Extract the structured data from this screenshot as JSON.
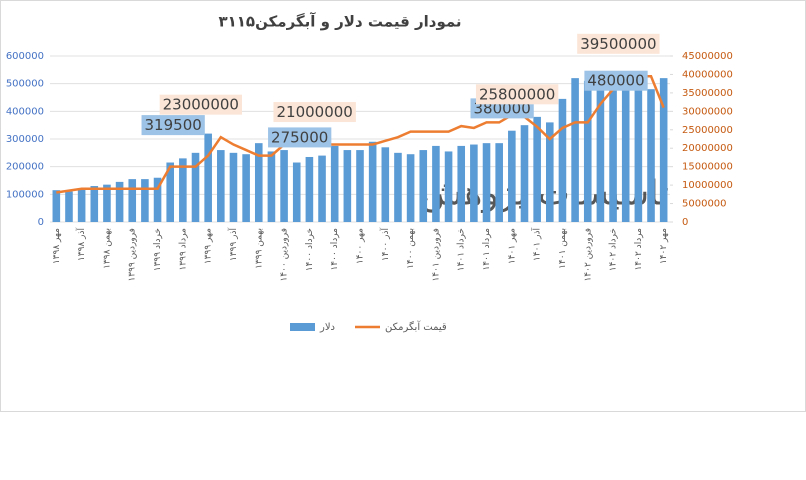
{
  "chart_data": {
    "type": "bar-line",
    "title": "نمودار قیمت دلار و آبگرمکن۳۱۱۵",
    "watermark": "تاسیسات پژوهش",
    "categories": [
      "مهر ۱۳۹۸",
      null,
      "آذر ۱۳۹۸",
      null,
      "بهمن ۱۳۹۸",
      null,
      "فروردین ۱۳۹۹",
      null,
      "خرداد ۱۳۹۹",
      null,
      "مرداد ۱۳۹۹",
      null,
      "مهر ۱۳۹۹",
      null,
      "آذر ۱۳۹۹",
      null,
      "بهمن ۱۳۹۹",
      null,
      "فروردین ۱۴۰۰",
      null,
      "خرداد ۱۴۰۰",
      null,
      "مرداد ۱۴۰۰",
      null,
      "مهر ۱۴۰۰",
      null,
      "آذر ۱۴۰۰",
      null,
      "بهمن ۱۴۰۰",
      null,
      "فروردین ۱۴۰۱",
      null,
      "خرداد ۱۴۰۱",
      null,
      "مرداد ۱۴۰۱",
      null,
      "مهر ۱۴۰۱",
      null,
      "آذر ۱۴۰۱",
      null,
      "بهمن ۱۴۰۱",
      null,
      "فروردین ۱۴۰۲",
      null,
      "خرداد ۱۴۰۲",
      null,
      "مرداد ۱۴۰۲",
      null,
      "مهر ۱۴۰۲"
    ],
    "series": [
      {
        "name": "دلار",
        "color": "#5b9bd5",
        "kind": "bar",
        "values": [
          115000,
          110000,
          120000,
          130000,
          135000,
          145000,
          155000,
          155000,
          160000,
          215000,
          230000,
          250000,
          319500,
          260000,
          250000,
          245000,
          285000,
          255000,
          260000,
          215000,
          235000,
          240000,
          275000,
          260000,
          260000,
          290000,
          270000,
          250000,
          245000,
          260000,
          275000,
          255000,
          275000,
          280000,
          285000,
          285000,
          330000,
          350000,
          380000,
          360000,
          445000,
          520000,
          510000,
          500000,
          480000,
          490000,
          485000,
          480000,
          520000
        ],
        "value_labels": [
          null,
          null,
          null,
          null,
          null,
          null,
          null,
          null,
          null,
          null,
          null,
          null,
          "319500",
          null,
          null,
          null,
          null,
          null,
          null,
          null,
          null,
          null,
          "275000",
          null,
          null,
          null,
          null,
          null,
          null,
          null,
          null,
          null,
          null,
          null,
          null,
          null,
          null,
          null,
          "380000",
          null,
          null,
          null,
          null,
          null,
          null,
          null,
          null,
          "480000",
          null
        ]
      },
      {
        "name": "قیمت آبگرمکن",
        "color": "#ed7d31",
        "kind": "line",
        "axis": "y2",
        "values": [
          8000000,
          8500000,
          9000000,
          9000000,
          9000000,
          9000000,
          9000000,
          9000000,
          9000000,
          15000000,
          15000000,
          15000000,
          18000000,
          23000000,
          21000000,
          19500000,
          18000000,
          18000000,
          21000000,
          21000000,
          22500000,
          21000000,
          21000000,
          21000000,
          21000000,
          21000000,
          22000000,
          23000000,
          24500000,
          24500000,
          24500000,
          24500000,
          26000000,
          25500000,
          27000000,
          27000000,
          29000000,
          28500000,
          25800000,
          22500000,
          25500000,
          27000000,
          27000000,
          32000000,
          36000000,
          37500000,
          39500000,
          39500000,
          31000000
        ],
        "value_labels": [
          null,
          null,
          null,
          null,
          null,
          null,
          null,
          null,
          null,
          null,
          null,
          null,
          null,
          "23000000",
          null,
          null,
          null,
          null,
          null,
          null,
          null,
          null,
          "21000000",
          null,
          null,
          null,
          null,
          null,
          null,
          null,
          null,
          null,
          null,
          null,
          null,
          null,
          null,
          null,
          "25800000",
          null,
          null,
          null,
          null,
          null,
          null,
          null,
          "39500000",
          null,
          null
        ]
      }
    ],
    "ylim": [
      0,
      600000
    ],
    "yticks": [
      0,
      100000,
      200000,
      300000,
      400000,
      500000,
      600000
    ],
    "y2lim": [
      0,
      45000000
    ],
    "y2ticks": [
      0,
      5000000,
      10000000,
      15000000,
      20000000,
      25000000,
      30000000,
      35000000,
      40000000,
      45000000
    ],
    "grid": true,
    "legend": "bottom"
  }
}
